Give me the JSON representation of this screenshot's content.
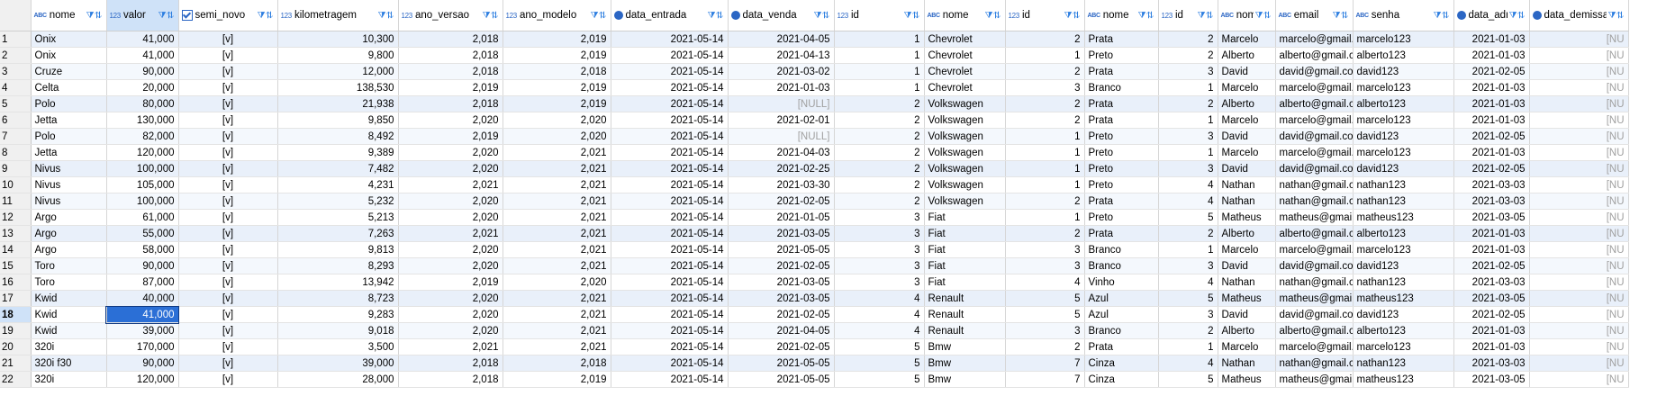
{
  "columns": [
    {
      "name": "nome",
      "type_icon": "text-type-icon",
      "badge": "ABC"
    },
    {
      "name": "valor",
      "type_icon": "number-type-icon",
      "badge": "123"
    },
    {
      "name": "semi_novo",
      "type_icon": "boolean-type-icon",
      "badge": ""
    },
    {
      "name": "kilometragem",
      "type_icon": "number-type-icon",
      "badge": "123"
    },
    {
      "name": "ano_versao",
      "type_icon": "number-type-icon",
      "badge": "123"
    },
    {
      "name": "ano_modelo",
      "type_icon": "number-type-icon",
      "badge": "123"
    },
    {
      "name": "data_entrada",
      "type_icon": "date-type-icon",
      "badge": ""
    },
    {
      "name": "data_venda",
      "type_icon": "date-type-icon",
      "badge": ""
    },
    {
      "name": "id",
      "type_icon": "key-number-type-icon",
      "badge": "123"
    },
    {
      "name": "nome",
      "type_icon": "text-type-icon",
      "badge": "ABC"
    },
    {
      "name": "id",
      "type_icon": "key-number-type-icon",
      "badge": "123"
    },
    {
      "name": "nome",
      "type_icon": "text-type-icon",
      "badge": "ABC"
    },
    {
      "name": "id",
      "type_icon": "key-number-type-icon",
      "badge": "123"
    },
    {
      "name": "nome",
      "type_icon": "text-type-icon",
      "badge": "ABC"
    },
    {
      "name": "email",
      "type_icon": "text-type-icon",
      "badge": "ABC"
    },
    {
      "name": "senha",
      "type_icon": "text-type-icon",
      "badge": "ABC"
    },
    {
      "name": "data_admissao",
      "type_icon": "date-type-icon",
      "badge": ""
    },
    {
      "name": "data_demissao",
      "type_icon": "date-type-icon",
      "badge": ""
    }
  ],
  "filter_icon": "filter-sort-icon",
  "selected": {
    "row": 18,
    "column": "valor"
  },
  "rows": [
    [
      "1",
      "Onix",
      "41,000",
      "[v]",
      "10,300",
      "2,018",
      "2,019",
      "2021-05-14",
      "2021-04-05",
      "1",
      "Chevrolet",
      "2",
      "Prata",
      "2",
      "Marcelo",
      "marcelo@gmail.com",
      "marcelo123",
      "2021-01-03",
      "[NU"
    ],
    [
      "2",
      "Onix",
      "41,000",
      "[v]",
      "9,800",
      "2,018",
      "2,019",
      "2021-05-14",
      "2021-04-13",
      "1",
      "Chevrolet",
      "1",
      "Preto",
      "2",
      "Alberto",
      "alberto@gmail.com",
      "alberto123",
      "2021-01-03",
      "[NU"
    ],
    [
      "3",
      "Cruze",
      "90,000",
      "[v]",
      "12,000",
      "2,018",
      "2,018",
      "2021-05-14",
      "2021-03-02",
      "1",
      "Chevrolet",
      "2",
      "Prata",
      "3",
      "David",
      "david@gmail.com",
      "david123",
      "2021-02-05",
      "[NU"
    ],
    [
      "4",
      "Celta",
      "20,000",
      "[v]",
      "138,530",
      "2,019",
      "2,019",
      "2021-05-14",
      "2021-01-03",
      "1",
      "Chevrolet",
      "3",
      "Branco",
      "1",
      "Marcelo",
      "marcelo@gmail.com",
      "marcelo123",
      "2021-01-03",
      "[NU"
    ],
    [
      "5",
      "Polo",
      "80,000",
      "[v]",
      "21,938",
      "2,018",
      "2,019",
      "2021-05-14",
      "[NULL]",
      "2",
      "Volkswagen",
      "2",
      "Prata",
      "2",
      "Alberto",
      "alberto@gmail.com",
      "alberto123",
      "2021-01-03",
      "[NU"
    ],
    [
      "6",
      "Jetta",
      "130,000",
      "[v]",
      "9,850",
      "2,020",
      "2,020",
      "2021-05-14",
      "2021-02-01",
      "2",
      "Volkswagen",
      "2",
      "Prata",
      "1",
      "Marcelo",
      "marcelo@gmail.com",
      "marcelo123",
      "2021-01-03",
      "[NU"
    ],
    [
      "7",
      "Polo",
      "82,000",
      "[v]",
      "8,492",
      "2,019",
      "2,020",
      "2021-05-14",
      "[NULL]",
      "2",
      "Volkswagen",
      "1",
      "Preto",
      "3",
      "David",
      "david@gmail.com",
      "david123",
      "2021-02-05",
      "[NU"
    ],
    [
      "8",
      "Jetta",
      "120,000",
      "[v]",
      "9,389",
      "2,020",
      "2,021",
      "2021-05-14",
      "2021-04-03",
      "2",
      "Volkswagen",
      "1",
      "Preto",
      "1",
      "Marcelo",
      "marcelo@gmail.com",
      "marcelo123",
      "2021-01-03",
      "[NU"
    ],
    [
      "9",
      "Nivus",
      "100,000",
      "[v]",
      "7,482",
      "2,020",
      "2,021",
      "2021-05-14",
      "2021-02-25",
      "2",
      "Volkswagen",
      "1",
      "Preto",
      "3",
      "David",
      "david@gmail.com",
      "david123",
      "2021-02-05",
      "[NU"
    ],
    [
      "10",
      "Nivus",
      "105,000",
      "[v]",
      "4,231",
      "2,021",
      "2,021",
      "2021-05-14",
      "2021-03-30",
      "2",
      "Volkswagen",
      "1",
      "Preto",
      "4",
      "Nathan",
      "nathan@gmail.com",
      "nathan123",
      "2021-03-03",
      "[NU"
    ],
    [
      "11",
      "Nivus",
      "100,000",
      "[v]",
      "5,232",
      "2,020",
      "2,021",
      "2021-05-14",
      "2021-02-05",
      "2",
      "Volkswagen",
      "2",
      "Prata",
      "4",
      "Nathan",
      "nathan@gmail.com",
      "nathan123",
      "2021-03-03",
      "[NU"
    ],
    [
      "12",
      "Argo",
      "61,000",
      "[v]",
      "5,213",
      "2,020",
      "2,021",
      "2021-05-14",
      "2021-01-05",
      "3",
      "Fiat",
      "1",
      "Preto",
      "5",
      "Matheus",
      "matheus@gmail.com",
      "matheus123",
      "2021-03-05",
      "[NU"
    ],
    [
      "13",
      "Argo",
      "55,000",
      "[v]",
      "7,263",
      "2,021",
      "2,021",
      "2021-05-14",
      "2021-03-05",
      "3",
      "Fiat",
      "2",
      "Prata",
      "2",
      "Alberto",
      "alberto@gmail.com",
      "alberto123",
      "2021-01-03",
      "[NU"
    ],
    [
      "14",
      "Argo",
      "58,000",
      "[v]",
      "9,813",
      "2,020",
      "2,021",
      "2021-05-14",
      "2021-05-05",
      "3",
      "Fiat",
      "3",
      "Branco",
      "1",
      "Marcelo",
      "marcelo@gmail.com",
      "marcelo123",
      "2021-01-03",
      "[NU"
    ],
    [
      "15",
      "Toro",
      "90,000",
      "[v]",
      "8,293",
      "2,020",
      "2,021",
      "2021-05-14",
      "2021-02-05",
      "3",
      "Fiat",
      "3",
      "Branco",
      "3",
      "David",
      "david@gmail.com",
      "david123",
      "2021-02-05",
      "[NU"
    ],
    [
      "16",
      "Toro",
      "87,000",
      "[v]",
      "13,942",
      "2,019",
      "2,020",
      "2021-05-14",
      "2021-03-05",
      "3",
      "Fiat",
      "4",
      "Vinho",
      "4",
      "Nathan",
      "nathan@gmail.com",
      "nathan123",
      "2021-03-03",
      "[NU"
    ],
    [
      "17",
      "Kwid",
      "40,000",
      "[v]",
      "8,723",
      "2,020",
      "2,021",
      "2021-05-14",
      "2021-03-05",
      "4",
      "Renault",
      "5",
      "Azul",
      "5",
      "Matheus",
      "matheus@gmail.com",
      "matheus123",
      "2021-03-05",
      "[NU"
    ],
    [
      "18",
      "Kwid",
      "41,000",
      "[v]",
      "9,283",
      "2,020",
      "2,021",
      "2021-05-14",
      "2021-02-05",
      "4",
      "Renault",
      "5",
      "Azul",
      "3",
      "David",
      "david@gmail.com",
      "david123",
      "2021-02-05",
      "[NU"
    ],
    [
      "19",
      "Kwid",
      "39,000",
      "[v]",
      "9,018",
      "2,020",
      "2,021",
      "2021-05-14",
      "2021-04-05",
      "4",
      "Renault",
      "3",
      "Branco",
      "2",
      "Alberto",
      "alberto@gmail.com",
      "alberto123",
      "2021-01-03",
      "[NU"
    ],
    [
      "20",
      "320i",
      "170,000",
      "[v]",
      "3,500",
      "2,021",
      "2,021",
      "2021-05-14",
      "2021-02-05",
      "5",
      "Bmw",
      "2",
      "Prata",
      "1",
      "Marcelo",
      "marcelo@gmail.com",
      "marcelo123",
      "2021-01-03",
      "[NU"
    ],
    [
      "21",
      "320i f30",
      "90,000",
      "[v]",
      "39,000",
      "2,018",
      "2,018",
      "2021-05-14",
      "2021-05-05",
      "5",
      "Bmw",
      "7",
      "Cinza",
      "4",
      "Nathan",
      "nathan@gmail.com",
      "nathan123",
      "2021-03-03",
      "[NU"
    ],
    [
      "22",
      "320i",
      "120,000",
      "[v]",
      "28,000",
      "2,018",
      "2,019",
      "2021-05-14",
      "2021-05-05",
      "5",
      "Bmw",
      "7",
      "Cinza",
      "5",
      "Matheus",
      "matheus@gmail.com",
      "matheus123",
      "2021-03-05",
      "[NU"
    ]
  ]
}
